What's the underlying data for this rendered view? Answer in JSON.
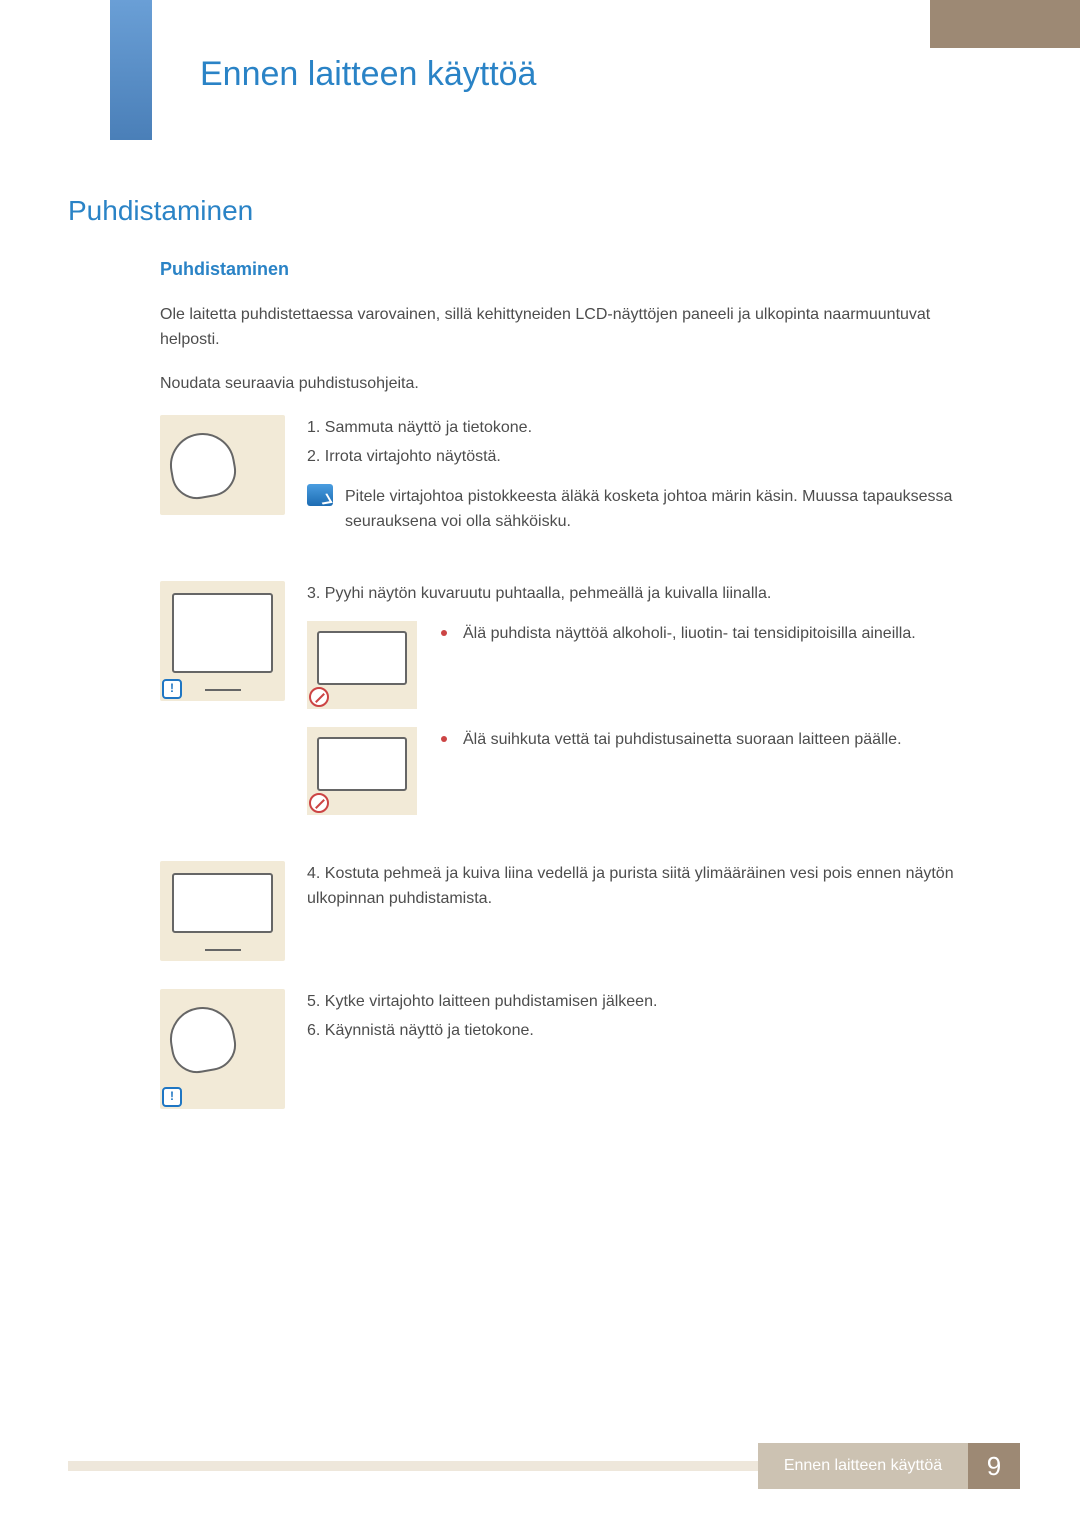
{
  "colors": {
    "accent_blue": "#2a83c6",
    "tab_blue_top": "#6a9fd6",
    "tab_blue_bottom": "#4a7fb8",
    "tab_brown": "#9d8974",
    "thumb_bg": "#f2ead7",
    "footer_label_bg": "#ccc2b2",
    "footer_bar_bg": "#eee7db",
    "body_text": "#4d4d4d",
    "bullet_red": "#c44444"
  },
  "typography": {
    "chapter_fontsize": 34,
    "section_fontsize": 28,
    "sub_fontsize": 18,
    "body_fontsize": 16
  },
  "chapter_title": "Ennen laitteen käyttöä",
  "section_title": "Puhdistaminen",
  "sub_title": "Puhdistaminen",
  "intro1": "Ole laitetta puhdistettaessa varovainen, sillä kehittyneiden LCD-näyttöjen paneeli ja ulkopinta naarmuuntuvat helposti.",
  "intro2": "Noudata seuraavia puhdistusohjeita.",
  "step1_a": "1. Sammuta näyttö ja tietokone.",
  "step1_b": "2. Irrota virtajohto näytöstä.",
  "step1_note": "Pitele virtajohtoa pistokkeesta äläkä kosketa johtoa märin käsin. Muussa tapauksessa seurauksena voi olla sähköisku.",
  "step3": "3. Pyyhi näytön kuvaruutu puhtaalla, pehmeällä ja kuivalla liinalla.",
  "step3_warn1": "Älä puhdista näyttöä alkoholi-, liuotin- tai tensidipitoisilla aineilla.",
  "step3_warn2": "Älä suihkuta vettä tai puhdistusainetta suoraan laitteen päälle.",
  "step4": "4. Kostuta pehmeä ja kuiva liina vedellä ja purista siitä ylimääräinen vesi pois ennen näytön ulkopinnan puhdistamista.",
  "step5": "5. Kytke virtajohto laitteen puhdistamisen jälkeen.",
  "step6": "6. Käynnistä näyttö ja tietokone.",
  "footer_label": "Ennen laitteen käyttöä",
  "page_number": "9"
}
